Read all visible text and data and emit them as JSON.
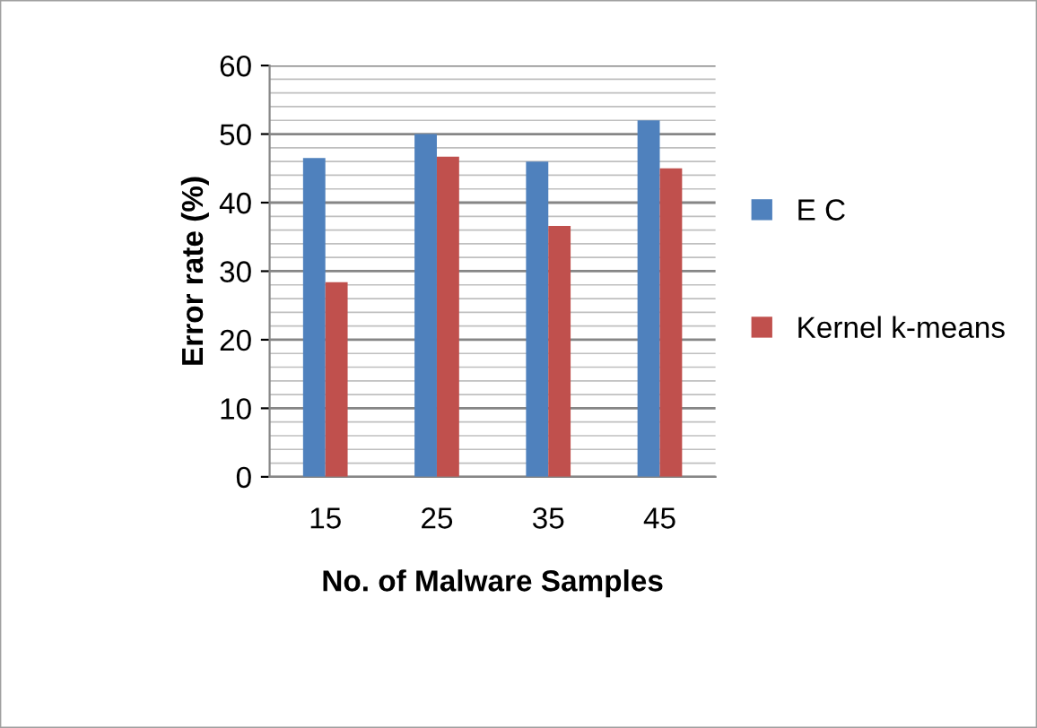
{
  "chart_data": {
    "type": "bar",
    "xlabel": "No. of Malware Samples",
    "ylabel": "Error rate (%)",
    "categories": [
      "15",
      "25",
      "35",
      "45"
    ],
    "series": [
      {
        "name": "E C",
        "color": "#4f81bd",
        "values": [
          46.5,
          50,
          46,
          52
        ]
      },
      {
        "name": "Kernel k-means",
        "color": "#c0504d",
        "values": [
          28.4,
          46.7,
          36.6,
          45
        ]
      }
    ],
    "ylim": [
      0,
      60
    ],
    "yticks": [
      0,
      10,
      20,
      30,
      40,
      50,
      60
    ],
    "grid": "y",
    "legend": "right"
  }
}
